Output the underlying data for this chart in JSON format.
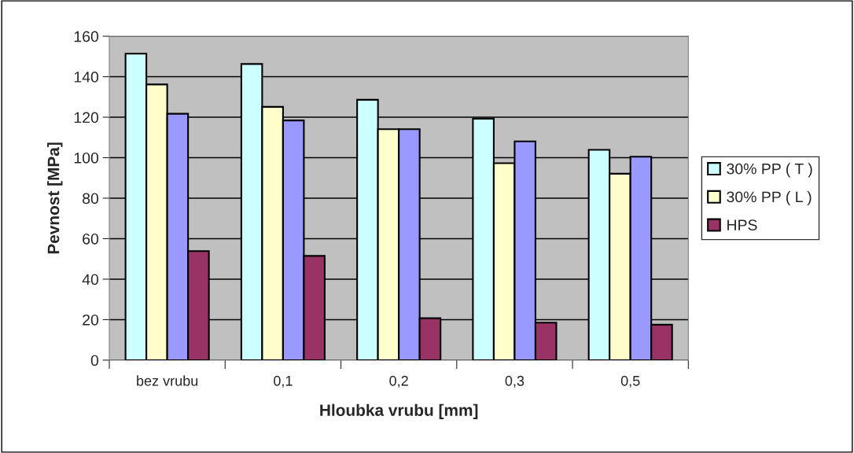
{
  "chart_data": {
    "type": "bar",
    "xlabel": "Hloubka vrubu [mm]",
    "ylabel": "Pevnost [MPa]",
    "categories": [
      "bez vrubu",
      "0,1",
      "0,2",
      "0,3",
      "0,5"
    ],
    "series": [
      {
        "name": "30% PP ( T )",
        "color": "#ccffff",
        "values": [
          151.4,
          146.3,
          128.6,
          119.3,
          103.9
        ]
      },
      {
        "name": "30% PP ( L )",
        "color": "#ffffcc",
        "values": [
          136.2,
          125.1,
          114.1,
          97.3,
          92.1
        ]
      },
      {
        "color": "#9999ff",
        "values": [
          121.7,
          118.4,
          114.1,
          108.1,
          100.5
        ]
      },
      {
        "name": "HPS",
        "color": "#993366",
        "values": [
          53.9,
          51.5,
          20.7,
          18.5,
          17.5
        ]
      }
    ],
    "ylim": [
      0,
      160
    ],
    "yticks": [
      0,
      20,
      40,
      60,
      80,
      100,
      120,
      140,
      160
    ],
    "grid": "y",
    "legend": "right"
  }
}
